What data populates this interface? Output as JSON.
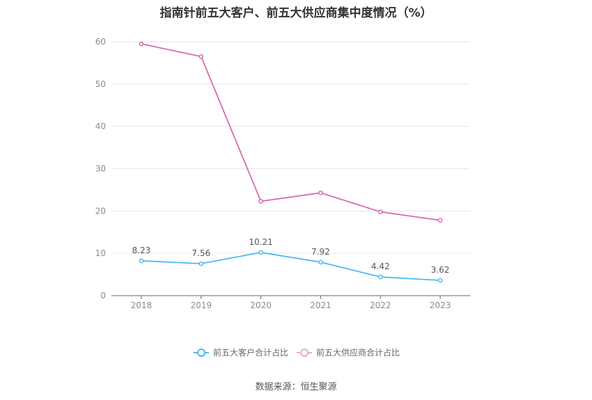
{
  "chart_data": {
    "type": "line",
    "title": "指南针前五大客户、前五大供应商集中度情况（%）",
    "categories": [
      "2018",
      "2019",
      "2020",
      "2021",
      "2022",
      "2023"
    ],
    "ylim": [
      0,
      60
    ],
    "yticks": [
      0,
      10,
      20,
      30,
      40,
      50,
      60
    ],
    "grid": true,
    "legend_position": "bottom",
    "series": [
      {
        "name": "前五大客户合计占比",
        "color": "#4db8f0",
        "values": [
          8.23,
          7.56,
          10.21,
          7.92,
          4.42,
          3.62
        ],
        "labels": [
          "8.23",
          "7.56",
          "10.21",
          "7.92",
          "4.42",
          "3.62"
        ]
      },
      {
        "name": "前五大供应商合计占比",
        "color": "#d46db0",
        "values": [
          59.5,
          56.5,
          22.3,
          24.3,
          19.8,
          17.8
        ]
      }
    ],
    "legend_colors": [
      "#4db8f0",
      "#f0a6d3"
    ]
  },
  "source": "数据来源：恒生聚源"
}
